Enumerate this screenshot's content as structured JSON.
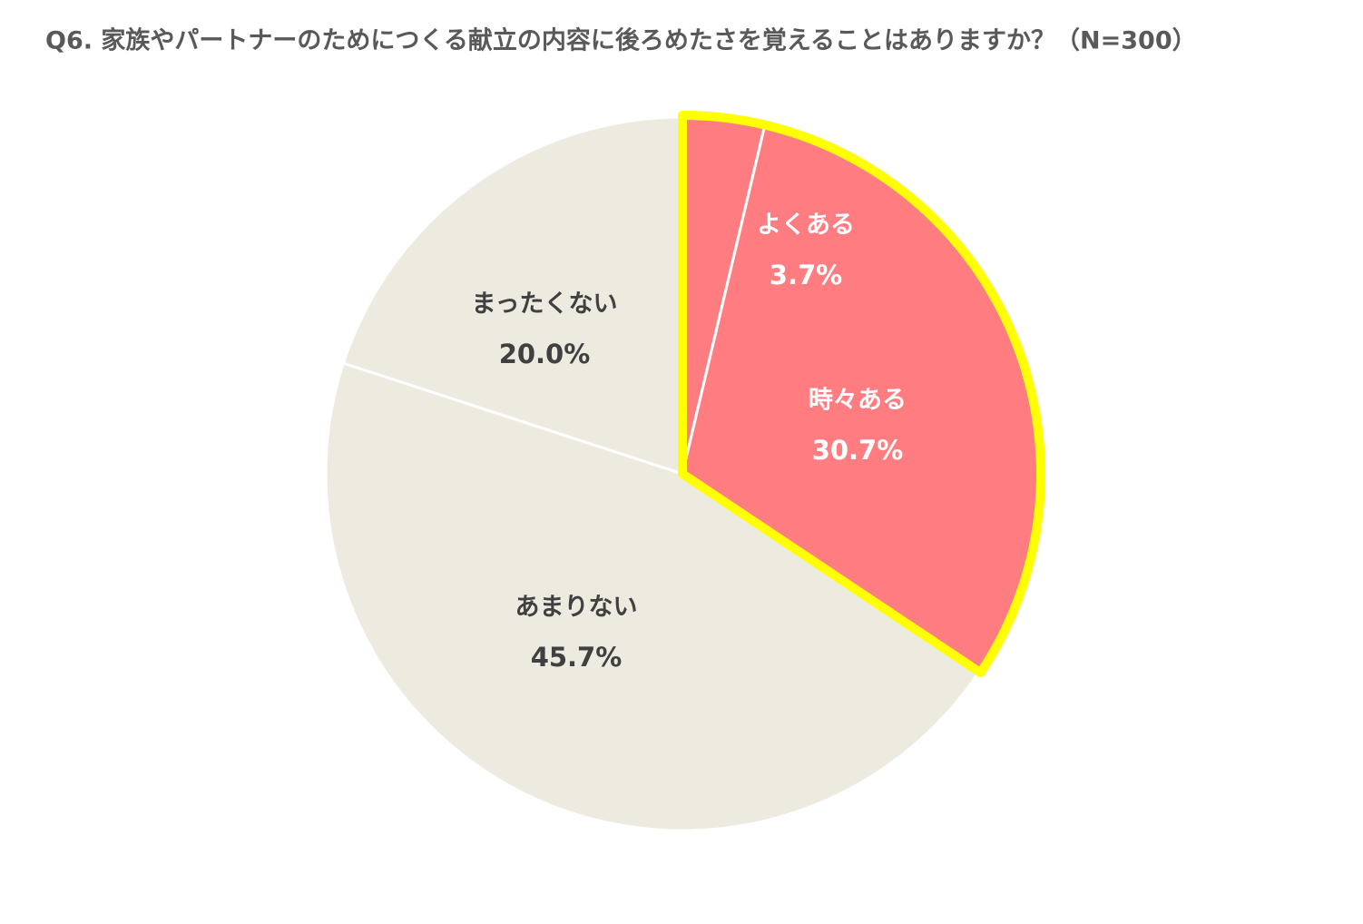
{
  "chart_data": {
    "type": "pie",
    "title": "Q6. 家族やパートナーのためにつくる献立の内容に後ろめたさを覚えることはありますか？（N=300）",
    "categories": [
      "よくある",
      "時々ある",
      "あまりない",
      "まったくない"
    ],
    "values": [
      3.7,
      30.7,
      45.7,
      20.0
    ],
    "value_labels": [
      "3.7%",
      "30.7%",
      "45.7%",
      "20.0%"
    ],
    "colors": [
      "#ff7c80",
      "#ff7c80",
      "#edeae0",
      "#edeae0"
    ],
    "highlighted": [
      true,
      true,
      false,
      false
    ],
    "highlight_color": "#ffff00"
  }
}
